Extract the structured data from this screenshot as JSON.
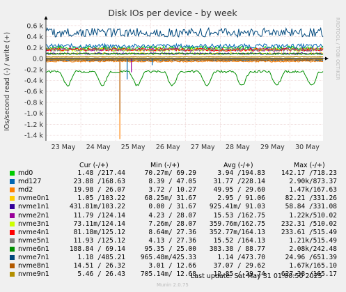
{
  "chart_data": {
    "type": "line",
    "title": "Disk IOs per device - by week",
    "ylabel": "IOs/second read (-) / write (+)",
    "watermark": "RRDTOOL / TOBI OETIKER",
    "footer": "Munin 2.0.75",
    "last_update": "Last update: Sat May 31 01:00:50 2025",
    "ylim": [
      -1.5,
      0.7
    ],
    "y_ticks": [
      {
        "v": 0.6,
        "label": "0.6 k"
      },
      {
        "v": 0.4,
        "label": "0.4 k"
      },
      {
        "v": 0.2,
        "label": "0.2 k"
      },
      {
        "v": 0.0,
        "label": "0.0"
      },
      {
        "v": -0.2,
        "label": "-0.2 k"
      },
      {
        "v": -0.4,
        "label": "-0.4 k"
      },
      {
        "v": -0.6,
        "label": "-0.6 k"
      },
      {
        "v": -0.8,
        "label": "-0.8 k"
      },
      {
        "v": -1.0,
        "label": "-1.0 k"
      },
      {
        "v": -1.2,
        "label": "-1.2 k"
      },
      {
        "v": -1.4,
        "label": "-1.4 k"
      }
    ],
    "x_range": [
      0,
      7.95
    ],
    "x_ticks": [
      {
        "v": 0.5,
        "label": "23 May"
      },
      {
        "v": 1.5,
        "label": "24 May"
      },
      {
        "v": 2.5,
        "label": "25 May"
      },
      {
        "v": 3.5,
        "label": "26 May"
      },
      {
        "v": 4.5,
        "label": "27 May"
      },
      {
        "v": 5.5,
        "label": "28 May"
      },
      {
        "v": 6.5,
        "label": "29 May"
      },
      {
        "v": 7.5,
        "label": "30 May"
      }
    ],
    "columns": [
      "Cur (-/+)",
      "Min (-/+)",
      "Avg (-/+)",
      "Max (-/+)"
    ],
    "series": [
      {
        "name": "md0",
        "color": "#00cc00",
        "cur": "1.48 /217.44",
        "min": "70.27m/ 69.29",
        "avg": "3.94 /194.83",
        "max": "142.17 /718.23"
      },
      {
        "name": "md127",
        "color": "#0066b3",
        "cur": "23.88 /168.63",
        "min": "8.39 / 47.05",
        "avg": "31.77 /228.14",
        "max": "2.90k/873.37"
      },
      {
        "name": "md2",
        "color": "#ff8000",
        "cur": "19.98 / 26.07",
        "min": "3.72 / 10.27",
        "avg": "49.95 / 29.60",
        "max": "1.47k/167.63"
      },
      {
        "name": "nvme0n1",
        "color": "#ffcc00",
        "cur": "1.05 /103.22",
        "min": "68.25m/ 31.67",
        "avg": "2.95 / 91.06",
        "max": "82.21 /331.26"
      },
      {
        "name": "nvme1n1",
        "color": "#330099",
        "cur": "431.81m/103.22",
        "min": "0.00 / 31.67",
        "avg": "925.41m/ 91.03",
        "max": "58.84 /331.08"
      },
      {
        "name": "nvme2n1",
        "color": "#990099",
        "cur": "11.79 /124.14",
        "min": "4.23 / 28.07",
        "avg": "15.53 /162.75",
        "max": "1.22k/510.02"
      },
      {
        "name": "nvme3n1",
        "color": "#ccff00",
        "cur": "73.11m/124.14",
        "min": "7.26m/ 28.07",
        "avg": "359.76m/162.75",
        "max": "232.31 /510.02"
      },
      {
        "name": "nvme4n1",
        "color": "#ff0000",
        "cur": "81.18m/125.12",
        "min": "8.64m/ 27.36",
        "avg": "352.77m/164.13",
        "max": "233.61 /515.49"
      },
      {
        "name": "nvme5n1",
        "color": "#808080",
        "cur": "11.93 /125.12",
        "min": "4.13 / 27.36",
        "avg": "15.52 /164.13",
        "max": "1.21k/515.49"
      },
      {
        "name": "nvme6n1",
        "color": "#008f00",
        "cur": "188.84 / 69.14",
        "min": "95.35 / 25.00",
        "avg": "383.38 / 88.77",
        "max": "2.08k/242.48"
      },
      {
        "name": "nvme7n1",
        "color": "#00487d",
        "cur": "1.18 /485.21",
        "min": "965.48m/425.33",
        "avg": "1.14 /473.70",
        "max": "24.96 /651.39"
      },
      {
        "name": "nvme8n1",
        "color": "#b35a00",
        "cur": "14.51 / 26.32",
        "min": "3.01 / 12.66",
        "avg": "37.07 / 29.62",
        "max": "1.67k/165.10"
      },
      {
        "name": "nvme9n1",
        "color": "#b38f00",
        "cur": "5.46 / 26.43",
        "min": "705.14m/ 12.68",
        "avg": "12.85 / 29.74",
        "max": "627.38 /165.17"
      }
    ]
  }
}
